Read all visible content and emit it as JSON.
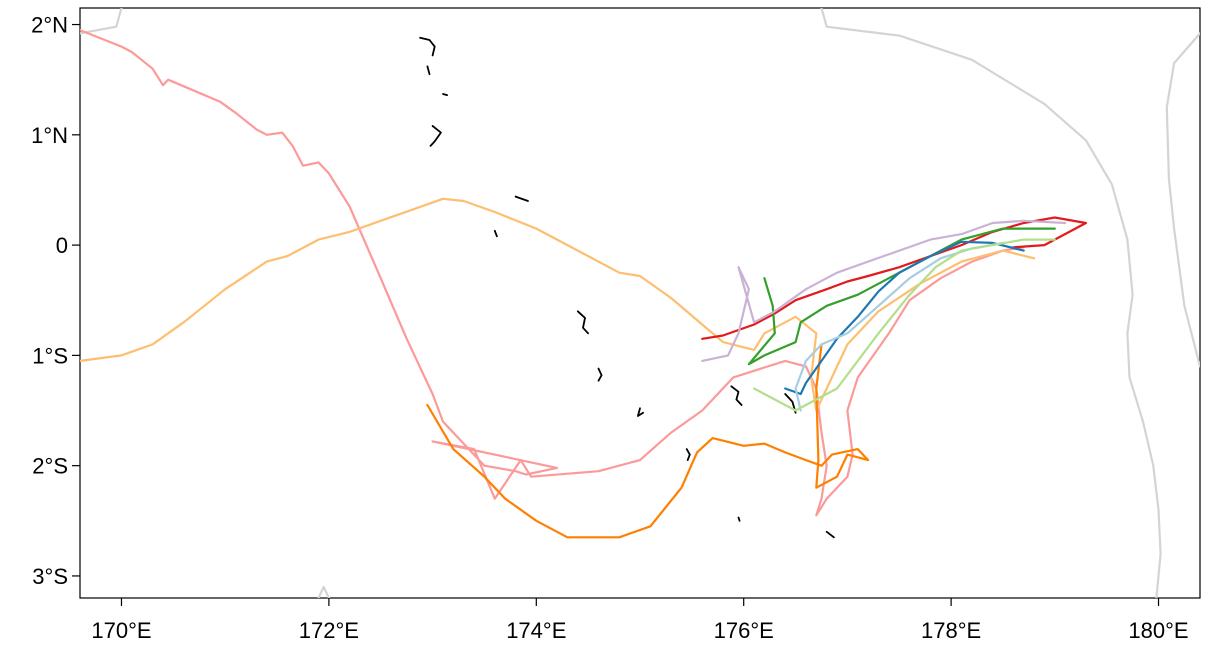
{
  "map": {
    "x_axis": {
      "range": [
        169.6,
        180.4
      ],
      "ticks": [
        {
          "value": 170,
          "label": "170°E"
        },
        {
          "value": 172,
          "label": "172°E"
        },
        {
          "value": 174,
          "label": "174°E"
        },
        {
          "value": 176,
          "label": "176°E"
        },
        {
          "value": 178,
          "label": "178°E"
        },
        {
          "value": 180,
          "label": "180°E"
        }
      ]
    },
    "y_axis": {
      "range": [
        -3.2,
        2.15
      ],
      "ticks": [
        {
          "value": 2,
          "label": "2°N"
        },
        {
          "value": 1,
          "label": "1°N"
        },
        {
          "value": 0,
          "label": "0"
        },
        {
          "value": -1,
          "label": "1°S"
        },
        {
          "value": -2,
          "label": "2°S"
        },
        {
          "value": -3,
          "label": "3°S"
        }
      ]
    },
    "boundary_color": "#d4d4d4",
    "boundaries": [
      [
        [
          169.6,
          1.92
        ],
        [
          169.95,
          1.98
        ],
        [
          170.0,
          2.15
        ]
      ],
      [
        [
          176.75,
          2.15
        ],
        [
          176.8,
          1.98
        ],
        [
          177.5,
          1.9
        ],
        [
          178.2,
          1.68
        ],
        [
          178.9,
          1.28
        ],
        [
          179.3,
          0.95
        ],
        [
          179.55,
          0.55
        ],
        [
          179.7,
          0.05
        ],
        [
          179.75,
          -0.45
        ],
        [
          179.7,
          -0.8
        ],
        [
          179.72,
          -1.2
        ],
        [
          179.85,
          -1.6
        ],
        [
          179.95,
          -2.0
        ],
        [
          180.0,
          -2.4
        ],
        [
          180.02,
          -2.8
        ],
        [
          179.98,
          -3.2
        ]
      ],
      [
        [
          180.4,
          1.92
        ],
        [
          180.15,
          1.65
        ],
        [
          180.08,
          1.25
        ],
        [
          180.1,
          0.6
        ],
        [
          180.15,
          0.15
        ],
        [
          180.25,
          -0.55
        ],
        [
          180.4,
          -1.1
        ]
      ],
      [
        [
          171.9,
          -3.2
        ],
        [
          171.95,
          -3.1
        ],
        [
          172.0,
          -3.2
        ]
      ]
    ],
    "islands": [
      [
        [
          172.88,
          1.88
        ],
        [
          172.97,
          1.86
        ],
        [
          173.02,
          1.8
        ],
        [
          173.0,
          1.72
        ]
      ],
      [
        [
          172.95,
          1.62
        ],
        [
          172.97,
          1.55
        ]
      ],
      [
        [
          173.1,
          1.37
        ],
        [
          173.14,
          1.36
        ]
      ],
      [
        [
          173.0,
          1.08
        ],
        [
          173.08,
          1.02
        ],
        [
          173.02,
          0.94
        ],
        [
          172.98,
          0.9
        ]
      ],
      [
        [
          173.8,
          0.44
        ],
        [
          173.92,
          0.4
        ]
      ],
      [
        [
          173.6,
          0.13
        ],
        [
          173.62,
          0.08
        ]
      ],
      [
        [
          174.4,
          -0.6
        ],
        [
          174.47,
          -0.66
        ],
        [
          174.45,
          -0.75
        ],
        [
          174.5,
          -0.8
        ]
      ],
      [
        [
          174.6,
          -1.12
        ],
        [
          174.63,
          -1.18
        ],
        [
          174.6,
          -1.23
        ]
      ],
      [
        [
          175.0,
          -1.48
        ],
        [
          174.98,
          -1.55
        ],
        [
          175.03,
          -1.52
        ]
      ],
      [
        [
          175.88,
          -1.28
        ],
        [
          175.95,
          -1.33
        ],
        [
          175.93,
          -1.4
        ],
        [
          175.98,
          -1.45
        ]
      ],
      [
        [
          176.4,
          -1.35
        ],
        [
          176.47,
          -1.42
        ],
        [
          176.5,
          -1.52
        ]
      ],
      [
        [
          175.45,
          -1.85
        ],
        [
          175.48,
          -1.9
        ],
        [
          175.46,
          -1.95
        ]
      ],
      [
        [
          175.95,
          -2.47
        ],
        [
          175.96,
          -2.5
        ]
      ],
      [
        [
          176.8,
          -2.6
        ],
        [
          176.87,
          -2.65
        ]
      ]
    ],
    "tracks": [
      {
        "color": "#fb9a99",
        "points": [
          [
            169.6,
            1.95
          ],
          [
            170.0,
            1.8
          ],
          [
            170.1,
            1.75
          ],
          [
            170.3,
            1.6
          ],
          [
            170.4,
            1.45
          ],
          [
            170.45,
            1.5
          ],
          [
            170.7,
            1.4
          ],
          [
            170.95,
            1.3
          ],
          [
            171.1,
            1.2
          ],
          [
            171.3,
            1.05
          ],
          [
            171.4,
            1.0
          ],
          [
            171.55,
            1.02
          ],
          [
            171.65,
            0.9
          ],
          [
            171.75,
            0.72
          ],
          [
            171.9,
            0.75
          ],
          [
            172.0,
            0.65
          ],
          [
            172.2,
            0.35
          ],
          [
            172.5,
            -0.3
          ],
          [
            172.75,
            -0.85
          ],
          [
            173.0,
            -1.35
          ],
          [
            173.1,
            -1.6
          ],
          [
            173.5,
            -2.0
          ],
          [
            173.8,
            -2.05
          ],
          [
            173.9,
            -2.08
          ],
          [
            174.2,
            -2.02
          ],
          [
            173.0,
            -1.78
          ],
          [
            173.4,
            -1.85
          ],
          [
            173.6,
            -2.3
          ],
          [
            173.85,
            -1.95
          ],
          [
            173.95,
            -2.1
          ],
          [
            174.6,
            -2.05
          ],
          [
            175.0,
            -1.95
          ],
          [
            175.3,
            -1.7
          ],
          [
            175.6,
            -1.5
          ],
          [
            175.9,
            -1.2
          ],
          [
            176.4,
            -1.05
          ],
          [
            176.6,
            -1.1
          ],
          [
            176.7,
            -1.3
          ],
          [
            176.75,
            -1.7
          ],
          [
            176.8,
            -2.0
          ],
          [
            176.75,
            -2.3
          ],
          [
            176.7,
            -2.45
          ],
          [
            176.8,
            -2.3
          ],
          [
            177.0,
            -2.1
          ],
          [
            177.05,
            -1.9
          ],
          [
            177.0,
            -1.5
          ],
          [
            177.1,
            -1.2
          ],
          [
            177.4,
            -0.8
          ],
          [
            177.6,
            -0.5
          ],
          [
            177.9,
            -0.3
          ],
          [
            178.2,
            -0.15
          ],
          [
            178.5,
            -0.05
          ],
          [
            178.7,
            -0.02
          ]
        ]
      },
      {
        "color": "#fdbf6f",
        "points": [
          [
            169.6,
            -1.05
          ],
          [
            170.0,
            -1.0
          ],
          [
            170.3,
            -0.9
          ],
          [
            170.6,
            -0.7
          ],
          [
            171.0,
            -0.4
          ],
          [
            171.4,
            -0.15
          ],
          [
            171.6,
            -0.1
          ],
          [
            171.9,
            0.05
          ],
          [
            172.2,
            0.12
          ],
          [
            172.5,
            0.22
          ],
          [
            172.8,
            0.32
          ],
          [
            173.1,
            0.42
          ],
          [
            173.3,
            0.4
          ],
          [
            173.6,
            0.3
          ],
          [
            174.0,
            0.15
          ],
          [
            174.4,
            -0.05
          ],
          [
            174.8,
            -0.25
          ],
          [
            175.0,
            -0.28
          ],
          [
            175.3,
            -0.48
          ],
          [
            175.6,
            -0.72
          ],
          [
            175.8,
            -0.88
          ],
          [
            176.1,
            -0.95
          ],
          [
            176.2,
            -0.8
          ],
          [
            176.5,
            -0.65
          ],
          [
            176.7,
            -0.8
          ],
          [
            176.65,
            -1.2
          ],
          [
            176.7,
            -1.5
          ],
          [
            176.8,
            -1.3
          ],
          [
            177.0,
            -0.9
          ],
          [
            177.3,
            -0.6
          ],
          [
            177.7,
            -0.35
          ],
          [
            178.1,
            -0.15
          ],
          [
            178.5,
            -0.05
          ],
          [
            178.8,
            -0.12
          ]
        ]
      },
      {
        "color": "#ff7f00",
        "points": [
          [
            172.95,
            -1.45
          ],
          [
            173.2,
            -1.85
          ],
          [
            173.5,
            -2.1
          ],
          [
            173.7,
            -2.3
          ],
          [
            174.0,
            -2.5
          ],
          [
            174.3,
            -2.65
          ],
          [
            174.8,
            -2.65
          ],
          [
            175.1,
            -2.55
          ],
          [
            175.4,
            -2.2
          ],
          [
            175.55,
            -1.88
          ],
          [
            175.7,
            -1.75
          ],
          [
            176.0,
            -1.82
          ],
          [
            176.2,
            -1.8
          ],
          [
            176.4,
            -1.88
          ],
          [
            176.6,
            -1.95
          ],
          [
            176.75,
            -2.0
          ],
          [
            176.85,
            -1.9
          ],
          [
            177.1,
            -1.85
          ],
          [
            177.2,
            -1.95
          ],
          [
            177.0,
            -1.9
          ],
          [
            176.9,
            -2.1
          ],
          [
            176.7,
            -2.2
          ],
          [
            176.72,
            -1.95
          ],
          [
            176.7,
            -1.3
          ],
          [
            176.75,
            -0.9
          ]
        ]
      },
      {
        "color": "#e31a1c",
        "points": [
          [
            175.6,
            -0.85
          ],
          [
            175.8,
            -0.82
          ],
          [
            176.1,
            -0.72
          ],
          [
            176.3,
            -0.62
          ],
          [
            176.5,
            -0.5
          ],
          [
            176.8,
            -0.4
          ],
          [
            177.0,
            -0.33
          ],
          [
            177.2,
            -0.28
          ],
          [
            177.5,
            -0.2
          ],
          [
            177.8,
            -0.1
          ],
          [
            178.1,
            0.0
          ],
          [
            178.4,
            0.12
          ],
          [
            178.7,
            0.2
          ],
          [
            179.0,
            0.25
          ],
          [
            179.3,
            0.2
          ],
          [
            178.9,
            -0.0
          ],
          [
            178.6,
            -0.02
          ]
        ]
      },
      {
        "color": "#33a02c",
        "points": [
          [
            176.2,
            -0.3
          ],
          [
            176.28,
            -0.55
          ],
          [
            176.3,
            -0.8
          ],
          [
            176.05,
            -1.08
          ],
          [
            176.2,
            -1.0
          ],
          [
            176.5,
            -0.88
          ],
          [
            176.55,
            -0.7
          ],
          [
            176.8,
            -0.55
          ],
          [
            177.1,
            -0.45
          ],
          [
            177.4,
            -0.3
          ],
          [
            177.8,
            -0.1
          ],
          [
            178.1,
            0.05
          ],
          [
            178.5,
            0.15
          ],
          [
            179.0,
            0.15
          ]
        ]
      },
      {
        "color": "#cab2d6",
        "points": [
          [
            175.6,
            -1.05
          ],
          [
            175.85,
            -1.0
          ],
          [
            175.95,
            -0.8
          ],
          [
            176.05,
            -0.4
          ],
          [
            175.95,
            -0.2
          ],
          [
            176.1,
            -0.7
          ],
          [
            176.3,
            -0.6
          ],
          [
            176.6,
            -0.4
          ],
          [
            176.9,
            -0.25
          ],
          [
            177.2,
            -0.15
          ],
          [
            177.5,
            -0.05
          ],
          [
            177.8,
            0.05
          ],
          [
            178.1,
            0.1
          ],
          [
            178.4,
            0.2
          ],
          [
            178.7,
            0.22
          ],
          [
            179.1,
            0.2
          ]
        ]
      },
      {
        "color": "#1f78b4",
        "points": [
          [
            176.4,
            -1.3
          ],
          [
            176.55,
            -1.35
          ],
          [
            176.6,
            -1.25
          ],
          [
            176.75,
            -1.05
          ],
          [
            176.9,
            -0.85
          ],
          [
            177.1,
            -0.65
          ],
          [
            177.3,
            -0.42
          ],
          [
            177.5,
            -0.25
          ],
          [
            177.8,
            -0.1
          ],
          [
            178.1,
            0.03
          ],
          [
            178.4,
            0.02
          ],
          [
            178.7,
            -0.05
          ]
        ]
      },
      {
        "color": "#a6cee3",
        "points": [
          [
            176.55,
            -1.5
          ],
          [
            176.5,
            -1.3
          ],
          [
            176.6,
            -1.05
          ],
          [
            176.75,
            -0.9
          ],
          [
            177.0,
            -0.8
          ],
          [
            177.3,
            -0.55
          ],
          [
            177.6,
            -0.3
          ],
          [
            177.9,
            -0.12
          ],
          [
            178.2,
            -0.03
          ],
          [
            178.5,
            0.02
          ]
        ]
      },
      {
        "color": "#b2df8a",
        "points": [
          [
            176.1,
            -1.3
          ],
          [
            176.3,
            -1.4
          ],
          [
            176.5,
            -1.5
          ],
          [
            176.6,
            -1.45
          ],
          [
            176.9,
            -1.3
          ],
          [
            177.1,
            -1.05
          ],
          [
            177.3,
            -0.8
          ],
          [
            177.6,
            -0.45
          ],
          [
            177.85,
            -0.2
          ],
          [
            178.1,
            -0.05
          ],
          [
            178.4,
            -0.0
          ],
          [
            178.7,
            0.05
          ],
          [
            179.0,
            0.05
          ]
        ]
      }
    ]
  }
}
